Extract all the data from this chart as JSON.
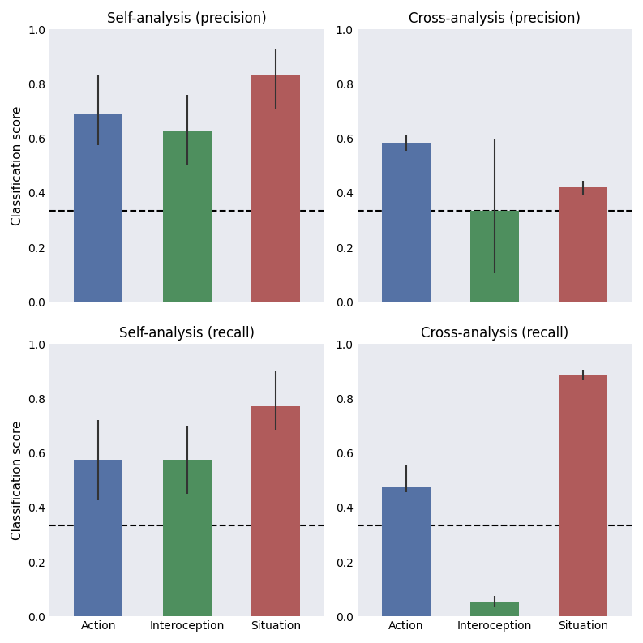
{
  "titles": [
    "Self-analysis (precision)",
    "Cross-analysis (precision)",
    "Self-analysis (recall)",
    "Cross-analysis (recall)"
  ],
  "categories": [
    "Action",
    "Interoception",
    "Situation"
  ],
  "bar_colors": [
    "#5572a5",
    "#4e8f5e",
    "#b05b5b"
  ],
  "values": [
    [
      0.69,
      0.625,
      0.835
    ],
    [
      0.585,
      0.335,
      0.42
    ],
    [
      0.575,
      0.575,
      0.77
    ],
    [
      0.475,
      0.055,
      0.885
    ]
  ],
  "errors_upper": [
    [
      0.83,
      0.76,
      0.93
    ],
    [
      0.61,
      0.6,
      0.445
    ],
    [
      0.72,
      0.7,
      0.9
    ],
    [
      0.555,
      0.075,
      0.905
    ]
  ],
  "errors_lower": [
    [
      0.575,
      0.505,
      0.705
    ],
    [
      0.555,
      0.105,
      0.395
    ],
    [
      0.425,
      0.45,
      0.685
    ],
    [
      0.455,
      0.035,
      0.865
    ]
  ],
  "chance_level": 0.333,
  "ylabel": "Classification score",
  "ylim": [
    0.0,
    1.0
  ],
  "yticks": [
    0.0,
    0.2,
    0.4,
    0.6,
    0.8,
    1.0
  ],
  "axes_background_color": "#e8eaf0",
  "figure_background_color": "#ffffff",
  "title_fontsize": 12,
  "tick_fontsize": 10,
  "ylabel_fontsize": 11,
  "bar_width": 0.55
}
